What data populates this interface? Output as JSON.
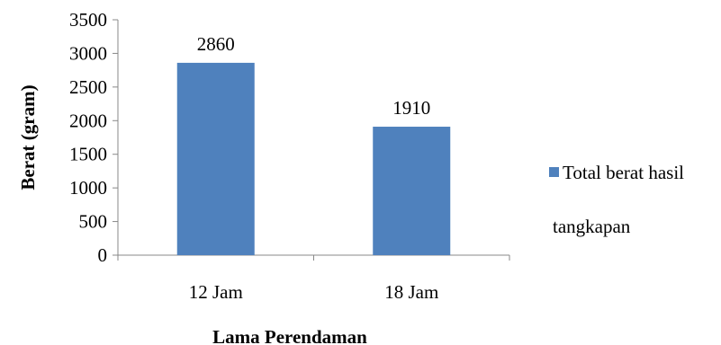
{
  "chart_data": {
    "type": "bar",
    "categories": [
      "12 Jam",
      "18 Jam"
    ],
    "series": [
      {
        "name": "Total berat hasil tangkapan",
        "values": [
          2860,
          1910
        ],
        "color": "#4F81BD"
      }
    ],
    "data_labels": [
      "2860",
      "1910"
    ],
    "xlabel": "Lama Perendaman",
    "ylabel": "Berat (gram)",
    "ylim": [
      0,
      3500
    ],
    "yticks": [
      "0",
      "500",
      "1000",
      "1500",
      "2000",
      "2500",
      "3000",
      "3500"
    ],
    "grid": false,
    "legend_position": "right"
  },
  "legend": {
    "line1": "Total berat hasil",
    "line2": "tangkapan"
  }
}
